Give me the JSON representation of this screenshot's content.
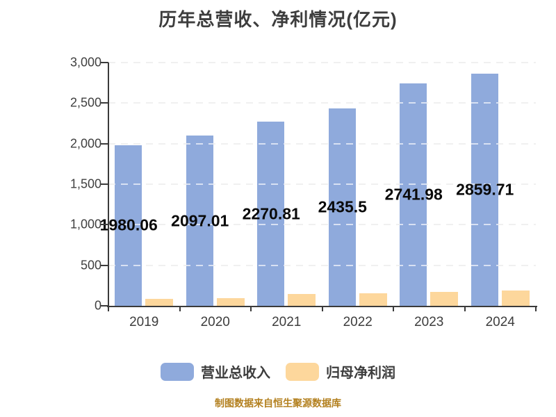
{
  "title": "历年总营收、净利情况(亿元)",
  "footer": {
    "text": "制图数据来自恒生聚源数据库",
    "color": "#b3801f"
  },
  "legend": {
    "items": [
      {
        "label": "营业总收入",
        "color": "#8faadc"
      },
      {
        "label": "归母净利润",
        "color": "#fdd79c"
      }
    ]
  },
  "chart_data": {
    "type": "bar",
    "title": "历年总营收、净利情况(亿元)",
    "categories": [
      "2019",
      "2020",
      "2021",
      "2022",
      "2023",
      "2024"
    ],
    "series": [
      {
        "name": "营业总收入",
        "color": "#8faadc",
        "values": [
          1980.06,
          2097.01,
          2270.81,
          2435.5,
          2741.98,
          2859.71
        ],
        "data_labels": [
          "1980.06",
          "2097.01",
          "2270.81",
          "2435.5",
          "2741.98",
          "2859.71"
        ]
      },
      {
        "name": "归母净利润",
        "color": "#fdd79c",
        "values": [
          85,
          95,
          145,
          155,
          175,
          190
        ]
      }
    ],
    "ylim": [
      0,
      3000
    ],
    "ytick_interval": 500,
    "ytick_labels": [
      "0",
      "500",
      "1,000",
      "1,500",
      "2,000",
      "2,500",
      "3,000"
    ],
    "grid": "horizontal-dashed",
    "legend_position": "bottom"
  }
}
